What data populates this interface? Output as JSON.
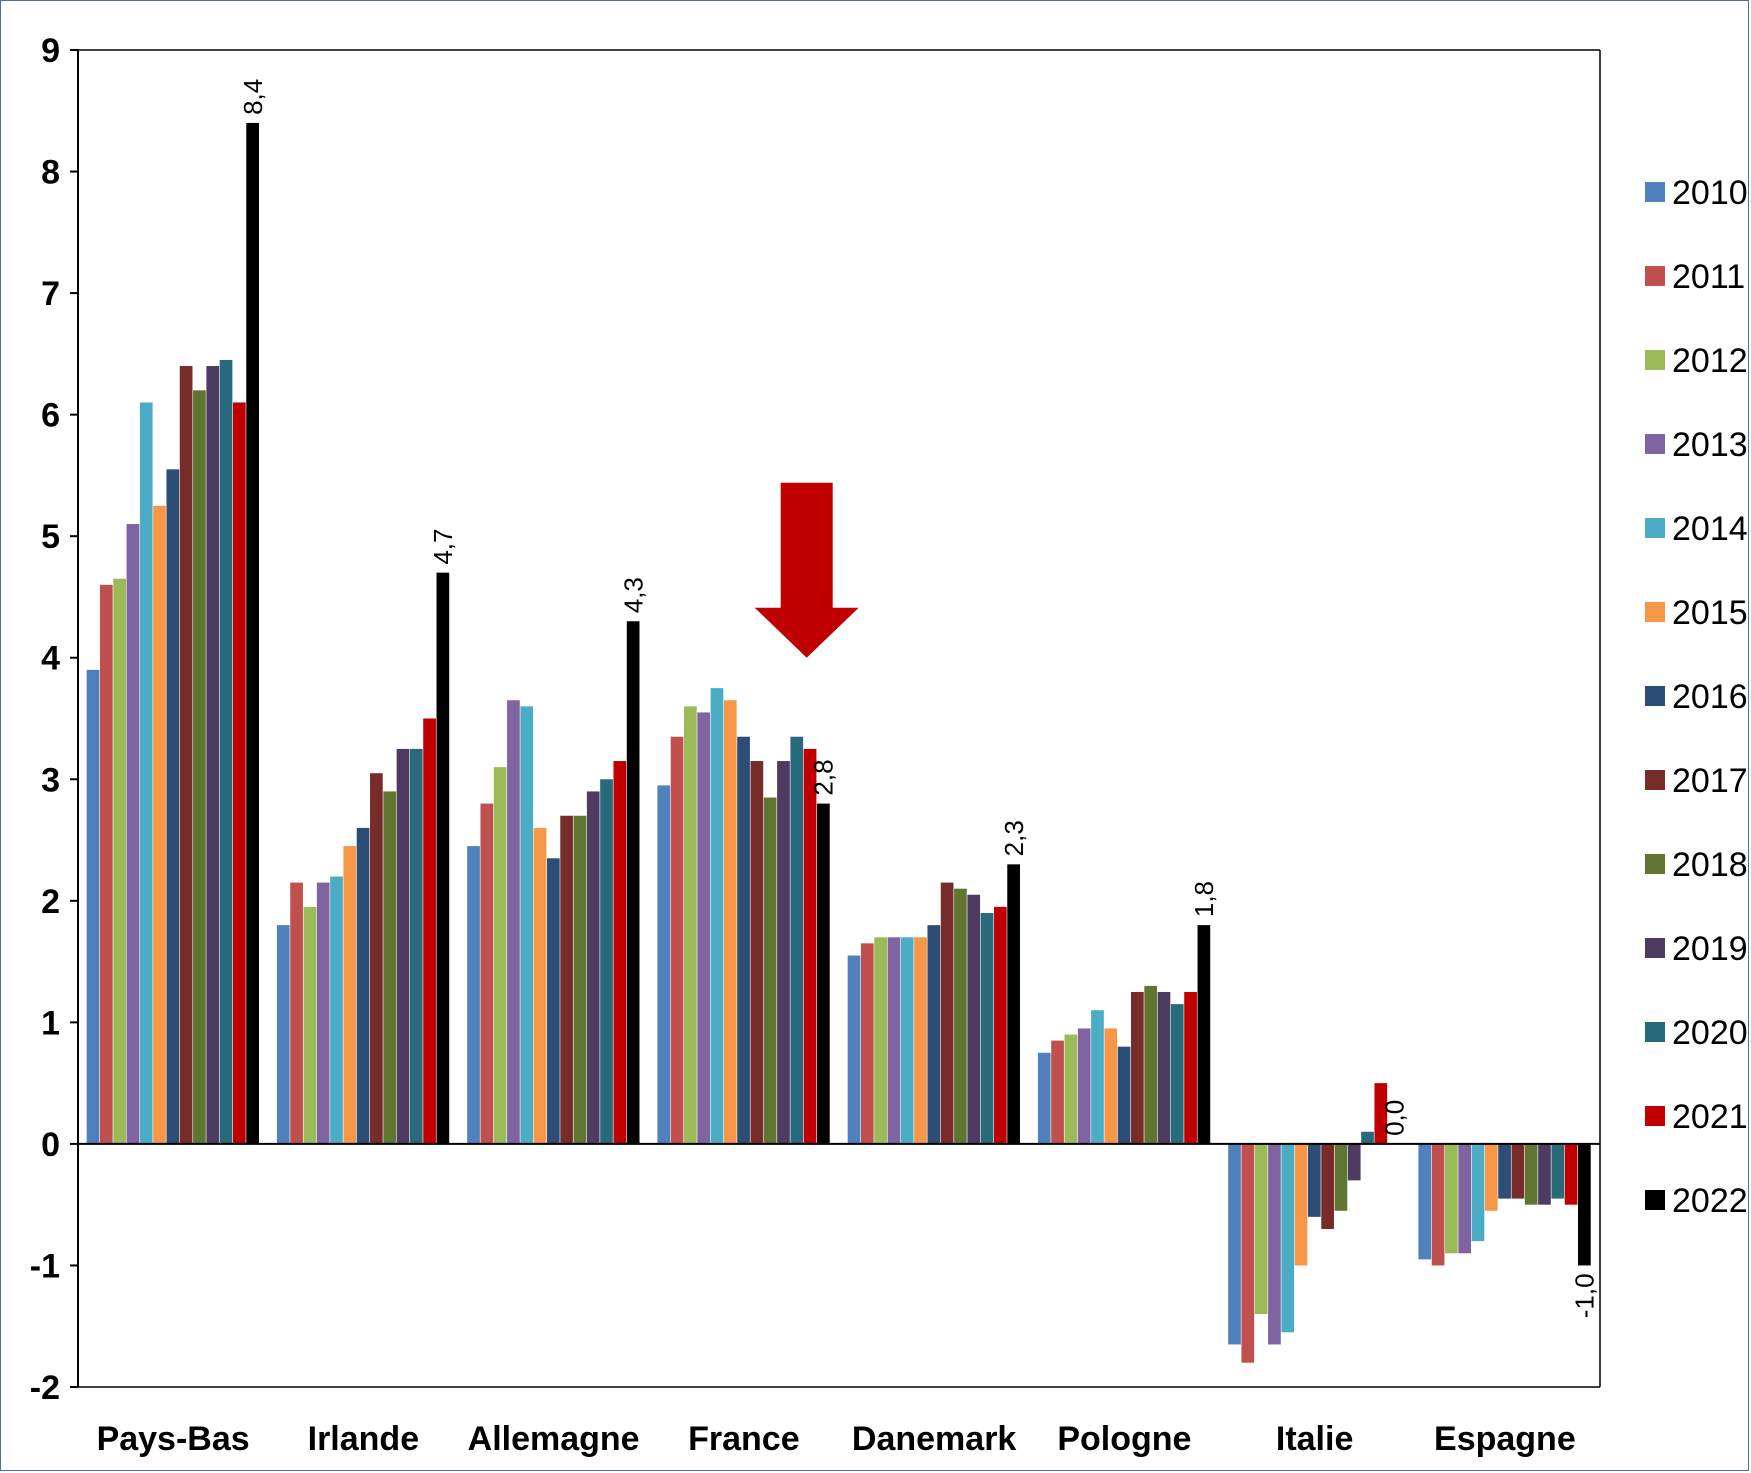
{
  "chart_data": {
    "type": "bar",
    "categories": [
      "Pays-Bas",
      "Irlande",
      "Allemagne",
      "France",
      "Danemark",
      "Pologne",
      "Italie",
      "Espagne"
    ],
    "ylim": [
      -2,
      9
    ],
    "yticks": [
      -2,
      -1,
      0,
      1,
      2,
      3,
      4,
      5,
      6,
      7,
      8,
      9
    ],
    "grid": false,
    "legend_position": "right",
    "series": [
      {
        "name": "2010",
        "color": "#4f81bd",
        "values": [
          3.9,
          1.8,
          2.45,
          2.95,
          1.55,
          0.75,
          -1.65,
          -0.95
        ]
      },
      {
        "name": "2011",
        "color": "#c0504d",
        "values": [
          4.6,
          2.15,
          2.8,
          3.35,
          1.65,
          0.85,
          -1.8,
          -1.0
        ]
      },
      {
        "name": "2012",
        "color": "#9bbb59",
        "values": [
          4.65,
          1.95,
          3.1,
          3.6,
          1.7,
          0.9,
          -1.4,
          -0.9
        ]
      },
      {
        "name": "2013",
        "color": "#8064a2",
        "values": [
          5.1,
          2.15,
          3.65,
          3.55,
          1.7,
          0.95,
          -1.65,
          -0.9
        ]
      },
      {
        "name": "2014",
        "color": "#4bacc6",
        "values": [
          6.1,
          2.2,
          3.6,
          3.75,
          1.7,
          1.1,
          -1.55,
          -0.8
        ]
      },
      {
        "name": "2015",
        "color": "#f79646",
        "values": [
          5.25,
          2.45,
          2.6,
          3.65,
          1.7,
          0.95,
          -1.0,
          -0.55
        ]
      },
      {
        "name": "2016",
        "color": "#2c4d75",
        "values": [
          5.55,
          2.6,
          2.35,
          3.35,
          1.8,
          0.8,
          -0.6,
          -0.45
        ]
      },
      {
        "name": "2017",
        "color": "#772c2a",
        "values": [
          6.4,
          3.05,
          2.7,
          3.15,
          2.15,
          1.25,
          -0.7,
          -0.45
        ]
      },
      {
        "name": "2018",
        "color": "#5f7530",
        "values": [
          6.2,
          2.9,
          2.7,
          2.85,
          2.1,
          1.3,
          -0.55,
          -0.5
        ]
      },
      {
        "name": "2019",
        "color": "#4d3b62",
        "values": [
          6.4,
          3.25,
          2.9,
          3.15,
          2.05,
          1.25,
          -0.3,
          -0.5
        ]
      },
      {
        "name": "2020",
        "color": "#276a7c",
        "values": [
          6.45,
          3.25,
          3.0,
          3.35,
          1.9,
          1.15,
          0.1,
          -0.45
        ]
      },
      {
        "name": "2021",
        "color": "#c00000",
        "values": [
          6.1,
          3.5,
          3.15,
          3.25,
          1.95,
          1.25,
          0.5,
          -0.5
        ]
      },
      {
        "name": "2022",
        "color": "#000000",
        "values": [
          8.4,
          4.7,
          4.3,
          2.8,
          2.3,
          1.8,
          0.0,
          -1.0
        ],
        "data_labels": [
          "8,4",
          "4,7",
          "4,3",
          "2,8",
          "2,3",
          "1,8",
          "0,0",
          "-1,0"
        ]
      }
    ],
    "annotations": [
      {
        "type": "arrow-down",
        "category": "France",
        "color": "#c00000",
        "tip_value": 4.0
      }
    ]
  }
}
